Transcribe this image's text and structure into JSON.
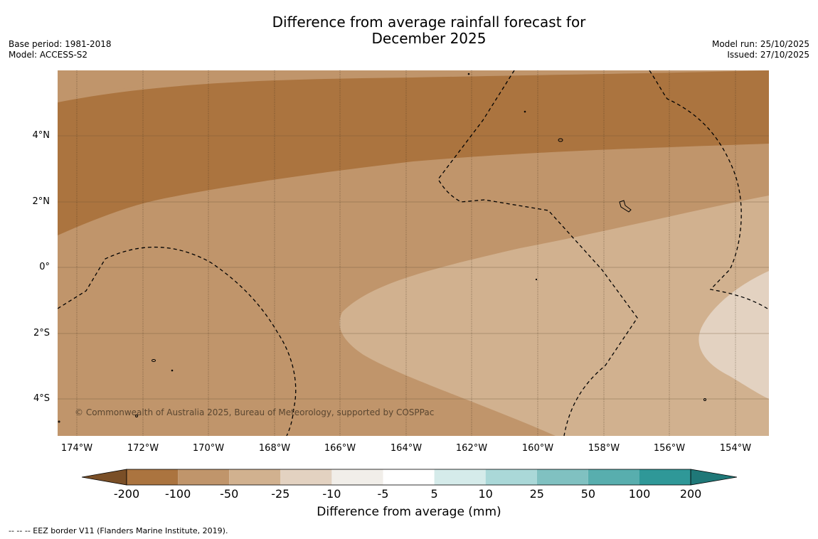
{
  "title": {
    "line1": "Difference from average rainfall forecast for",
    "line2": "December 2025"
  },
  "meta_left": {
    "base_period": "Base period: 1981-2018",
    "model": "Model: ACCESS-S2"
  },
  "meta_right": {
    "model_run": "Model run: 25/10/2025",
    "issued": "Issued: 27/10/2025"
  },
  "map": {
    "lat_labels": [
      "4°N",
      "2°N",
      "0°",
      "2°S",
      "4°S"
    ],
    "lon_labels": [
      "174°W",
      "172°W",
      "170°W",
      "168°W",
      "166°W",
      "164°W",
      "162°W",
      "160°W",
      "158°W",
      "156°W",
      "154°W"
    ],
    "copyright": "© Commonwealth of Australia 2025, Bureau of Meteorology, supported by COSPPac",
    "colors": {
      "lt_neg100": "#ab743f",
      "neg100_neg50": "#c0956b",
      "neg50_neg25": "#d1b18f",
      "neg25_neg10": "#e3d2c1"
    }
  },
  "colorbar": {
    "labels": [
      "-200",
      "-100",
      "-50",
      "-25",
      "-10",
      "-5",
      "5",
      "10",
      "25",
      "50",
      "100",
      "200"
    ],
    "colors": [
      "#7a4f27",
      "#ab743f",
      "#c0956b",
      "#d1b18f",
      "#e3d2c1",
      "#f1eee9",
      "#ffffff",
      "#d5ebea",
      "#aad8d8",
      "#80c1c1",
      "#58aeae",
      "#2f9898",
      "#1f7878"
    ],
    "title": "Difference from average (mm)"
  },
  "footer": "--  --  -- EEZ border V11 (Flanders Marine Institute, 2019)."
}
